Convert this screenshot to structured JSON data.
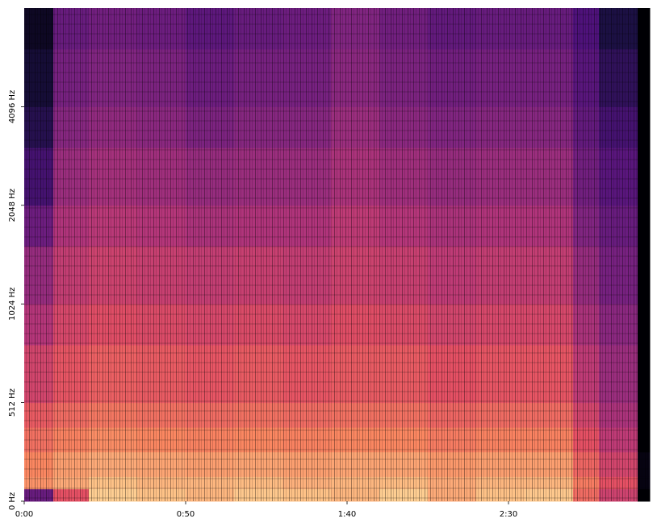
{
  "chart_data": {
    "type": "heatmap",
    "colormap": "magma",
    "xlim": [
      0,
      193.75
    ],
    "xticks": [
      {
        "value": 0,
        "label": "0:00"
      },
      {
        "value": 50,
        "label": "0:50"
      },
      {
        "value": 100,
        "label": "1:40"
      },
      {
        "value": 150,
        "label": "2:30"
      }
    ],
    "ylim": [
      0,
      8192
    ],
    "yscale": "symlog",
    "yticks": [
      {
        "value": 0,
        "label": "0 Hz"
      },
      {
        "value": 512,
        "label": "512 Hz"
      },
      {
        "value": 1024,
        "label": "1024 Hz"
      },
      {
        "value": 2048,
        "label": "2048 Hz"
      },
      {
        "value": 4096,
        "label": "4096 Hz"
      }
    ],
    "x": [
      0,
      9,
      20,
      35,
      50,
      65,
      80,
      95,
      110,
      125,
      140,
      155,
      170,
      178,
      190,
      193.75
    ],
    "y": [
      0,
      64,
      128,
      256,
      384,
      512,
      768,
      1024,
      1536,
      2048,
      3072,
      4096,
      6144,
      8192
    ],
    "zlim": [
      -80,
      0
    ],
    "z": [
      [
        -55,
        -30,
        -8,
        -10,
        -12,
        -9,
        -10,
        -12,
        -8,
        -14,
        -10,
        -9,
        -25,
        -35,
        -80
      ],
      [
        -18,
        -14,
        -10,
        -12,
        -12,
        -11,
        -13,
        -12,
        -11,
        -14,
        -12,
        -12,
        -22,
        -30,
        -78
      ],
      [
        -20,
        -16,
        -14,
        -15,
        -16,
        -15,
        -16,
        -15,
        -15,
        -17,
        -16,
        -16,
        -26,
        -34,
        -78
      ],
      [
        -24,
        -21,
        -19,
        -20,
        -21,
        -20,
        -21,
        -20,
        -20,
        -22,
        -21,
        -21,
        -30,
        -38,
        -80
      ],
      [
        -28,
        -25,
        -23,
        -24,
        -25,
        -24,
        -25,
        -24,
        -24,
        -26,
        -25,
        -25,
        -34,
        -42,
        -80
      ],
      [
        -34,
        -29,
        -27,
        -28,
        -29,
        -28,
        -29,
        -28,
        -28,
        -30,
        -29,
        -29,
        -38,
        -45,
        -80
      ],
      [
        -40,
        -33,
        -31,
        -32,
        -33,
        -32,
        -33,
        -31,
        -32,
        -34,
        -33,
        -33,
        -42,
        -48,
        -80
      ],
      [
        -46,
        -37,
        -35,
        -36,
        -37,
        -36,
        -37,
        -35,
        -36,
        -38,
        -37,
        -37,
        -46,
        -52,
        -80
      ],
      [
        -54,
        -41,
        -39,
        -40,
        -42,
        -41,
        -41,
        -38,
        -40,
        -42,
        -41,
        -41,
        -50,
        -55,
        -80
      ],
      [
        -62,
        -45,
        -43,
        -44,
        -46,
        -45,
        -45,
        -42,
        -44,
        -46,
        -45,
        -45,
        -53,
        -58,
        -80
      ],
      [
        -68,
        -49,
        -47,
        -48,
        -51,
        -49,
        -49,
        -45,
        -48,
        -50,
        -49,
        -49,
        -56,
        -62,
        -80
      ],
      [
        -72,
        -52,
        -50,
        -51,
        -54,
        -52,
        -52,
        -48,
        -51,
        -53,
        -52,
        -52,
        -58,
        -66,
        -80
      ],
      [
        -75,
        -55,
        -53,
        -54,
        -57,
        -55,
        -54,
        -50,
        -53,
        -56,
        -55,
        -55,
        -60,
        -70,
        -80
      ]
    ]
  }
}
